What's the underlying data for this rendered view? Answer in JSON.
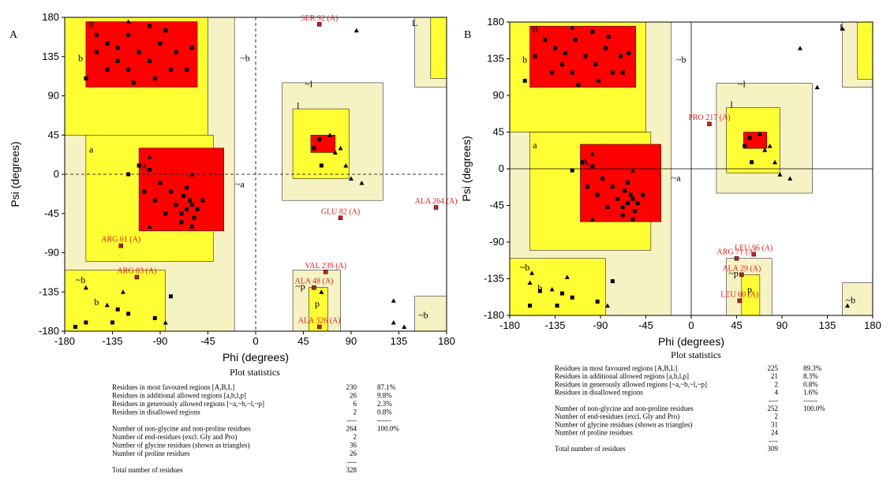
{
  "chart_data": [
    {
      "type": "scatter",
      "panel_label": "A",
      "x_label": "Phi (degrees)",
      "y_label": "Psi (degrees)",
      "xlim": [
        -180,
        180
      ],
      "ylim": [
        -180,
        180
      ],
      "xticks": [
        -180,
        -135,
        -90,
        -45,
        0,
        45,
        90,
        135,
        180
      ],
      "yticks": [
        -180,
        -135,
        -90,
        -45,
        0,
        45,
        90,
        135,
        180
      ],
      "points": {
        "x": [
          -150,
          -140,
          -130,
          -120,
          -110,
          -100,
          -90,
          -80,
          -75,
          -120,
          -140,
          -60,
          -100,
          -85,
          -130,
          -65,
          -150,
          -115,
          -95,
          -160,
          -65,
          -60,
          -70,
          -62,
          -55,
          -68,
          -75,
          -58,
          -80,
          -90,
          -100,
          -110,
          -70,
          -50,
          -85,
          -95,
          -60,
          -65,
          -120,
          -105,
          60,
          55,
          62,
          -160,
          -170,
          -130,
          -120,
          -135,
          -80,
          -95
        ],
        "y": [
          160,
          150,
          145,
          160,
          140,
          130,
          150,
          120,
          140,
          120,
          120,
          145,
          170,
          165,
          130,
          120,
          140,
          105,
          110,
          110,
          -40,
          -35,
          -45,
          -30,
          -40,
          -25,
          -35,
          -50,
          -20,
          -10,
          5,
          10,
          -55,
          -30,
          -45,
          -30,
          -60,
          -15,
          0,
          -20,
          40,
          30,
          10,
          -170,
          -175,
          -155,
          -160,
          -170,
          -140,
          -165
        ]
      },
      "triangles": {
        "x": [
          -120,
          -100,
          95,
          80,
          90,
          100,
          -140,
          -125,
          -85,
          130,
          -160,
          62,
          70,
          -100,
          75,
          85,
          -60,
          140,
          130
        ],
        "y": [
          175,
          20,
          165,
          30,
          -5,
          -10,
          -150,
          -135,
          -170,
          -170,
          -130,
          -135,
          45,
          -60,
          25,
          10,
          0,
          -175,
          -145
        ]
      },
      "labeled_points": [
        {
          "label": "SER 92 (A)",
          "x": 60,
          "y": 172
        },
        {
          "label": "GLU 82 (A)",
          "x": 80,
          "y": -50
        },
        {
          "label": "ALA 264 (A)",
          "x": 170,
          "y": -38
        },
        {
          "label": "ARG 61 (A)",
          "x": -127,
          "y": -82
        },
        {
          "label": "ARG 83 (A)",
          "x": -112,
          "y": -118
        },
        {
          "label": "VAL 239 (A)",
          "x": 66,
          "y": -112
        },
        {
          "label": "ALA 48 (A)",
          "x": 55,
          "y": -130
        },
        {
          "label": "ALA 326 (A)",
          "x": 60,
          "y": -175
        }
      ],
      "region_labels": [
        "B",
        "b",
        "a",
        "A",
        "~a",
        "l",
        "~l",
        "~b",
        "~b",
        "b",
        "p",
        "~p",
        "~b",
        "L"
      ],
      "statistics": {
        "title": "Plot statistics",
        "rows": [
          {
            "label": "Residues in most favoured regions  [A,B,L]",
            "count": 230,
            "percent": "87.1%"
          },
          {
            "label": "Residues in additional allowed regions  [a,b,l,p]",
            "count": 26,
            "percent": "9.8%"
          },
          {
            "label": "Residues in generously allowed regions  [~a,~b,~l,~p]",
            "count": 6,
            "percent": "2.3%"
          },
          {
            "label": "Residues in disallowed regions",
            "count": 2,
            "percent": "0.8%"
          },
          {
            "count": "----",
            "percent": "------"
          },
          {
            "label": "Number of non-glycine and non-proline residues",
            "count": 264,
            "percent": "100.0%"
          },
          {
            "label": "Number of end-residues (excl. Gly and Pro)",
            "count": 2
          },
          {
            "label": "Number of glycine residues (shown as triangles)",
            "count": 36
          },
          {
            "label": "Number of proline residues",
            "count": 26
          },
          {
            "count": "----"
          },
          {
            "label": "Total number of residues",
            "count": 328
          }
        ]
      }
    },
    {
      "type": "scatter",
      "panel_label": "B",
      "x_label": "Phi (degrees)",
      "y_label": "Psi (degrees)",
      "xlim": [
        -180,
        180
      ],
      "ylim": [
        -180,
        180
      ],
      "xticks": [
        -180,
        -135,
        -90,
        -45,
        0,
        45,
        90,
        135,
        180
      ],
      "yticks": [
        -180,
        -135,
        -90,
        -45,
        0,
        45,
        90,
        135,
        180
      ],
      "points": {
        "x": [
          -145,
          -135,
          -125,
          -115,
          -105,
          -95,
          -85,
          -78,
          -70,
          -118,
          -138,
          -62,
          -98,
          -82,
          -128,
          -68,
          -155,
          -112,
          -92,
          -165,
          -63,
          -58,
          -68,
          -60,
          -53,
          -66,
          -73,
          -56,
          -78,
          -88,
          -98,
          -108,
          -68,
          -48,
          -83,
          -93,
          -58,
          -63,
          -118,
          -103,
          58,
          53,
          60,
          -160,
          -150,
          -128,
          -118,
          -133,
          -78,
          -93
        ],
        "y": [
          158,
          148,
          142,
          158,
          138,
          128,
          148,
          118,
          138,
          118,
          118,
          142,
          168,
          162,
          128,
          118,
          138,
          103,
          108,
          108,
          -42,
          -37,
          -47,
          -32,
          -42,
          -27,
          -37,
          -52,
          -22,
          -12,
          3,
          8,
          -57,
          -32,
          -47,
          -32,
          -62,
          -17,
          -2,
          -22,
          38,
          28,
          8,
          -168,
          -150,
          -153,
          -158,
          -168,
          -138,
          -163
        ]
      },
      "triangles": {
        "x": [
          -118,
          -98,
          108,
          78,
          88,
          98,
          -138,
          -123,
          -83,
          150,
          -158,
          -160,
          68,
          -98,
          73,
          83,
          -58,
          155,
          125
        ],
        "y": [
          173,
          18,
          148,
          28,
          -7,
          -12,
          -148,
          -133,
          -168,
          172,
          -128,
          -140,
          43,
          -62,
          23,
          8,
          -2,
          -168,
          100
        ]
      },
      "labeled_points": [
        {
          "label": "PRO 217 (A)",
          "x": 18,
          "y": 55
        },
        {
          "label": "LEU 96 (A)",
          "x": 62,
          "y": -105
        },
        {
          "label": "ARG 71 (A)",
          "x": 45,
          "y": -110
        },
        {
          "label": "ALA 29 (A)",
          "x": 50,
          "y": -130
        },
        {
          "label": "LEU 60 (A)",
          "x": 48,
          "y": -162
        }
      ],
      "region_labels": [
        "B",
        "b",
        "a",
        "A",
        "~a",
        "l",
        "~l",
        "~b",
        "~b",
        "b",
        "p",
        "~p",
        "~b",
        "L"
      ],
      "statistics": {
        "title": "Plot statistics",
        "rows": [
          {
            "label": "Residues in most favoured regions  [A,B,L]",
            "count": 225,
            "percent": "89.3%"
          },
          {
            "label": "Residues in additional allowed regions  [a,b,l,p]",
            "count": 21,
            "percent": "8.3%"
          },
          {
            "label": "Residues in generously allowed regions  [~a,~b,~l,~p]",
            "count": 2,
            "percent": "0.8%"
          },
          {
            "label": "Residues in disallowed regions",
            "count": 4,
            "percent": "1.6%"
          },
          {
            "count": "----",
            "percent": "------"
          },
          {
            "label": "Number of non-glycine and non-proline residues",
            "count": 252,
            "percent": "100.0%"
          },
          {
            "label": "Number of end-residues (excl. Gly and Pro)",
            "count": 2
          },
          {
            "label": "Number of glycine residues (shown as triangles)",
            "count": 31
          },
          {
            "label": "Number of proline residues",
            "count": 24
          },
          {
            "count": "----"
          },
          {
            "label": "Total number of residues",
            "count": 309
          }
        ]
      }
    }
  ]
}
